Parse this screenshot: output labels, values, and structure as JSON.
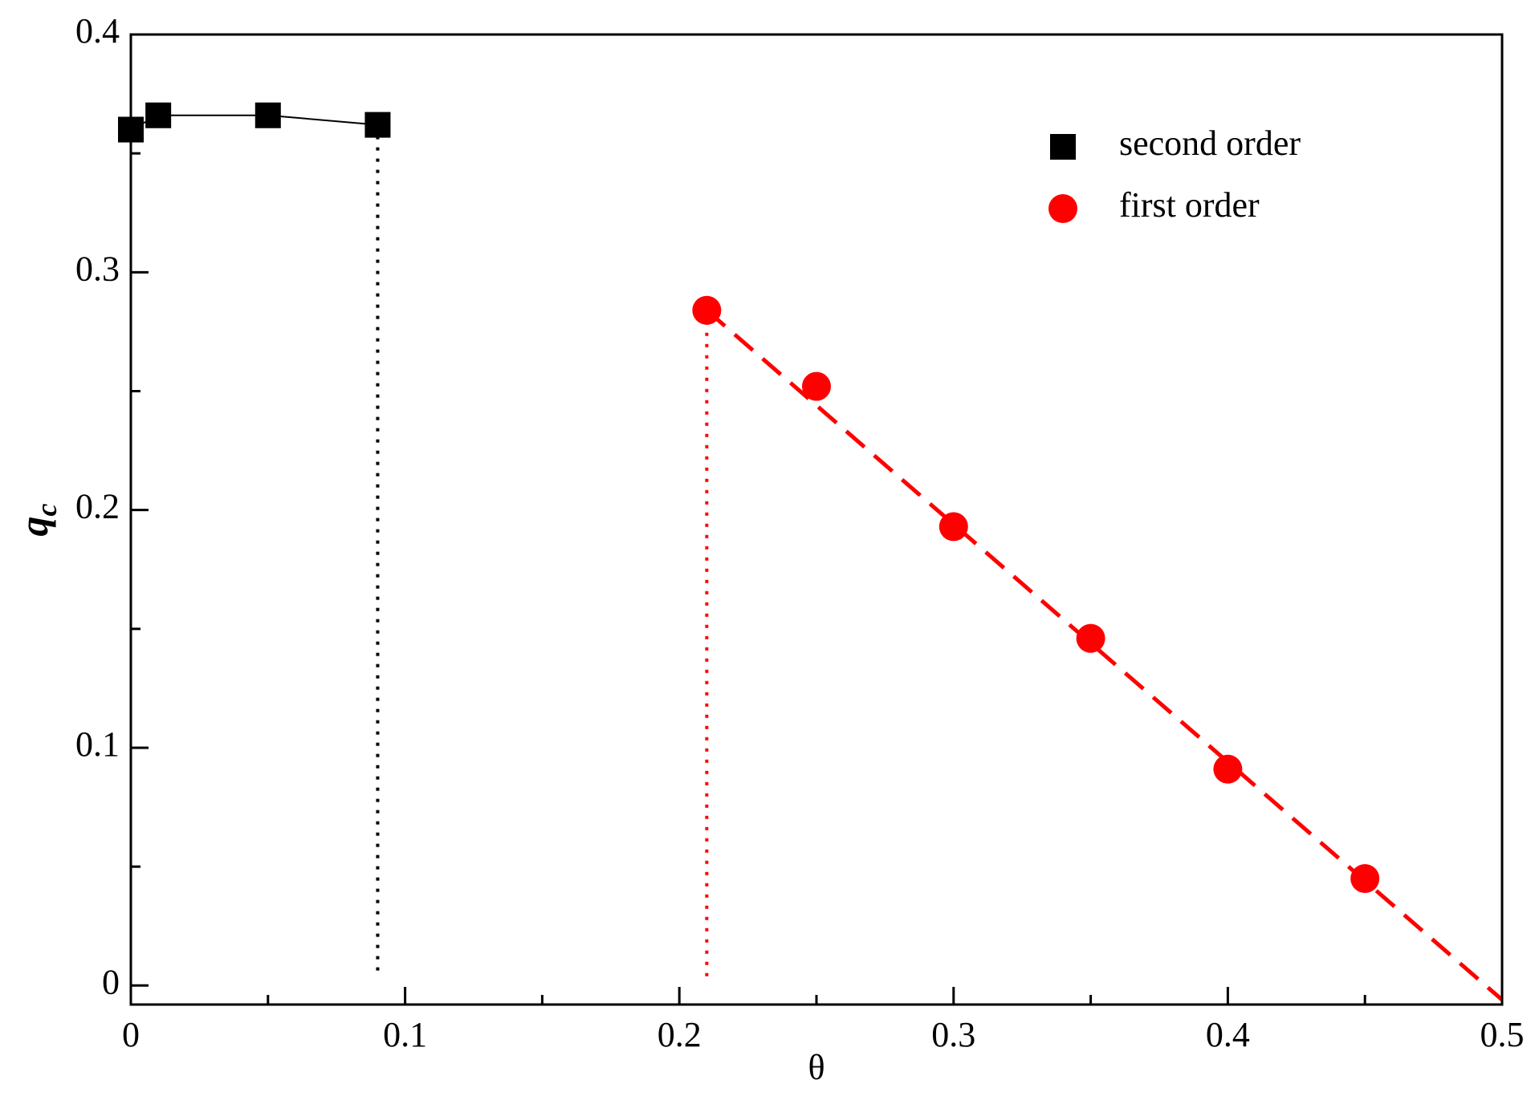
{
  "chart_data": {
    "type": "scatter",
    "xlabel": "θ",
    "ylabel": {
      "main": "q",
      "sub": "c"
    },
    "xlim": [
      0,
      0.5
    ],
    "ylim": [
      -0.008,
      0.4
    ],
    "xticks": [
      0,
      0.1,
      0.2,
      0.3,
      0.4,
      0.5
    ],
    "yticks": [
      0,
      0.1,
      0.2,
      0.3,
      0.4
    ],
    "xminorticks": [
      0.05,
      0.15,
      0.25,
      0.35,
      0.45
    ],
    "yminorticks": [
      0.05,
      0.15,
      0.25,
      0.35
    ],
    "legend": "top-right",
    "series": [
      {
        "name": "second order",
        "color": "#000000",
        "marker": "square",
        "line": "solid",
        "x": [
          0,
          0.01,
          0.05,
          0.09
        ],
        "values": [
          0.36,
          0.366,
          0.366,
          0.362
        ]
      },
      {
        "name": "first order",
        "color": "#ff0000",
        "marker": "circle",
        "line": "none",
        "x": [
          0.21,
          0.25,
          0.3,
          0.35,
          0.4,
          0.45
        ],
        "values": [
          0.284,
          0.252,
          0.193,
          0.146,
          0.091,
          0.045
        ]
      }
    ],
    "fit": {
      "color": "#ff0000",
      "x": [
        0.21,
        0.5
      ],
      "values": [
        0.284,
        -0.006
      ]
    },
    "guides": [
      {
        "color": "#000000",
        "x": [
          0.09,
          0.09
        ],
        "values": [
          0.362,
          0.003
        ]
      },
      {
        "color": "#ff0000",
        "x": [
          0.21,
          0.21
        ],
        "values": [
          0.284,
          0.003
        ]
      }
    ]
  }
}
